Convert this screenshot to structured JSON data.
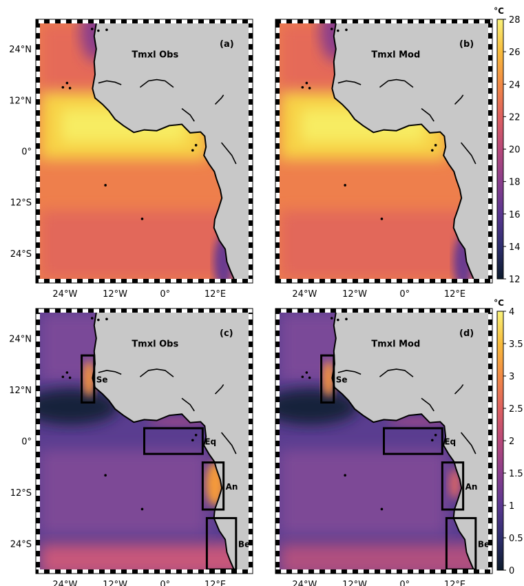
{
  "chart_data": [
    {
      "type": "heatmap",
      "panel": "(a)",
      "title": "Tmxl Obs",
      "colorbar": "cb1"
    },
    {
      "type": "heatmap",
      "panel": "(b)",
      "title": "Tmxl Mod",
      "colorbar": "cb1"
    },
    {
      "type": "heatmap",
      "panel": "(c)",
      "title": "Tmxl Obs",
      "colorbar": "cb2",
      "regions": [
        {
          "label": "Se",
          "lon": [
            -20,
            -17
          ],
          "lat": [
            9,
            20
          ]
        },
        {
          "label": "Eq",
          "lon": [
            -5,
            9
          ],
          "lat": [
            -3,
            3
          ]
        },
        {
          "label": "An",
          "lon": [
            9,
            14
          ],
          "lat": [
            -16,
            -5
          ]
        },
        {
          "label": "Be",
          "lon": [
            10,
            17
          ],
          "lat": [
            -30,
            -18
          ]
        }
      ]
    },
    {
      "type": "heatmap",
      "panel": "(d)",
      "title": "Tmxl Mod",
      "colorbar": "cb2",
      "regions": [
        {
          "label": "Se",
          "lon": [
            -20,
            -17
          ],
          "lat": [
            9,
            20
          ]
        },
        {
          "label": "Eq",
          "lon": [
            -5,
            9
          ],
          "lat": [
            -3,
            3
          ]
        },
        {
          "label": "An",
          "lon": [
            9,
            14
          ],
          "lat": [
            -16,
            -5
          ]
        },
        {
          "label": "Be",
          "lon": [
            10,
            17
          ],
          "lat": [
            -30,
            -18
          ]
        }
      ]
    }
  ],
  "axes": {
    "xlim": [
      -30,
      20
    ],
    "ylim": [
      -30,
      30
    ],
    "xticks": [
      -24,
      -12,
      0,
      12
    ],
    "xtick_labels": [
      "24°W",
      "12°W",
      "0°",
      "12°E"
    ],
    "yticks": [
      24,
      12,
      0,
      -12,
      -24
    ],
    "ytick_labels": [
      "24°N",
      "12°N",
      "0°",
      "12°S",
      "24°S"
    ]
  },
  "colorbars": {
    "cb1": {
      "unit": "°C",
      "range": [
        12,
        28
      ],
      "ticks": [
        12,
        14,
        16,
        18,
        20,
        22,
        24,
        26,
        28
      ],
      "tick_labels": [
        "12",
        "14",
        "16",
        "18",
        "20",
        "22",
        "24",
        "26",
        "28"
      ]
    },
    "cb2": {
      "unit": "°C",
      "range": [
        0,
        4
      ],
      "ticks": [
        0,
        0.5,
        1,
        1.5,
        2,
        2.5,
        3,
        3.5,
        4
      ],
      "tick_labels": [
        "0",
        "0.5",
        "1",
        "1.5",
        "2",
        "2.5",
        "3",
        "3.5",
        "4"
      ]
    }
  },
  "colors": {
    "land": "#c8c8c8",
    "coast": "#000000",
    "cmap": [
      "#0d1b2c",
      "#2e2e6e",
      "#5a3790",
      "#8a3e8c",
      "#b8497a",
      "#de6160",
      "#f28a45",
      "#f8bc3c",
      "#f9f27a"
    ]
  }
}
